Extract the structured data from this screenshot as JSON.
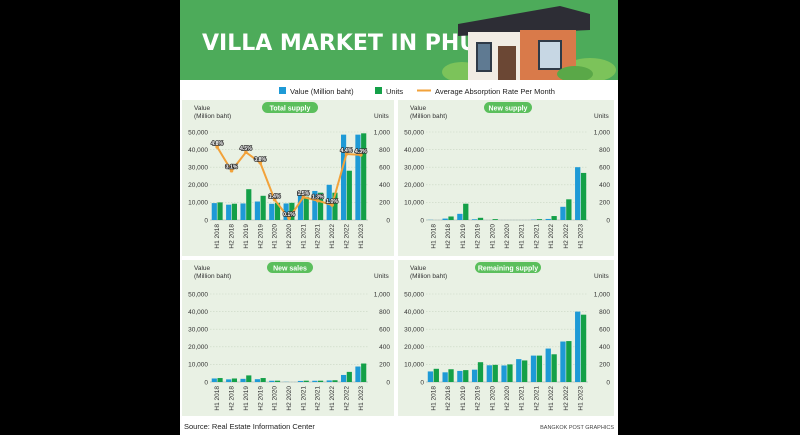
{
  "header": {
    "title": "VILLA MARKET IN PHUKET"
  },
  "legend": {
    "value_label": "Value (Million baht)",
    "units_label": "Units",
    "rate_label": "Average Absorption Rate Per Month"
  },
  "colors": {
    "value_bar": "#1e9ad6",
    "units_bar": "#14a048",
    "rate_line": "#f2a23a",
    "header_green": "#4dab5a",
    "panel_bg": "#e9f1e4"
  },
  "axis_text": {
    "left_title_line1": "Value",
    "left_title_line2": "(Million baht)",
    "right_title": "Units"
  },
  "footer": {
    "source": "Source: Real Estate Information Center",
    "credit": "BANGKOK POST GRAPHICS"
  },
  "chart_data": [
    {
      "type": "bar",
      "title": "Total supply",
      "categories": [
        "H1 2018",
        "H2 2018",
        "H1 2019",
        "H2 2019",
        "H1 2020",
        "H2 2020",
        "H1 2021",
        "H2 2021",
        "H1 2022",
        "H2 2022",
        "H1 2023"
      ],
      "series": [
        {
          "name": "Value (Million baht)",
          "axis": "left",
          "values": [
            9600,
            8700,
            9400,
            10500,
            9200,
            9400,
            15000,
            16500,
            20000,
            48500,
            48500
          ]
        },
        {
          "name": "Units",
          "axis": "right",
          "values": [
            200,
            185,
            350,
            275,
            195,
            195,
            265,
            310,
            310,
            560,
            985
          ]
        },
        {
          "name": "Average Absorption Rate Per Month",
          "type": "line",
          "axis": "right",
          "values": [
            830,
            560,
            770,
            650,
            230,
            20,
            260,
            220,
            170,
            750,
            740
          ]
        }
      ],
      "rate_labels": [
        "4.8%",
        "3.1%",
        "4.5%",
        "3.8%",
        "1.4%",
        "0.1%",
        "1.5%",
        "1.3%",
        "1.0%",
        "4.4%",
        "4.3%"
      ],
      "ylim_left": [
        0,
        50000
      ],
      "ylim_right": [
        0,
        1000
      ],
      "yticks_left": [
        "0",
        "10,000",
        "20,000",
        "30,000",
        "40,000",
        "50,000"
      ],
      "yticks_right": [
        "0",
        "200",
        "400",
        "600",
        "800",
        "1,000"
      ]
    },
    {
      "type": "bar",
      "title": "New supply",
      "categories": [
        "H1 2018",
        "H2 2018",
        "H1 2019",
        "H2 2019",
        "H1 2020",
        "H2 2020",
        "H1 2021",
        "H2 2021",
        "H1 2022",
        "H2 2022",
        "H1 2023"
      ],
      "series": [
        {
          "name": "Value (Million baht)",
          "axis": "left",
          "values": [
            100,
            800,
            3500,
            400,
            0,
            0,
            0,
            200,
            600,
            7500,
            30000
          ]
        },
        {
          "name": "Units",
          "axis": "right",
          "values": [
            0,
            40,
            185,
            25,
            10,
            0,
            0,
            10,
            45,
            235,
            535
          ]
        }
      ],
      "ylim_left": [
        0,
        50000
      ],
      "ylim_right": [
        0,
        1000
      ],
      "yticks_left": [
        "0",
        "10,000",
        "20,000",
        "30,000",
        "40,000",
        "50,000"
      ],
      "yticks_right": [
        "0",
        "200",
        "400",
        "600",
        "800",
        "1,000"
      ]
    },
    {
      "type": "bar",
      "title": "New sales",
      "categories": [
        "H1 2018",
        "H2 2018",
        "H1 2019",
        "H2 2019",
        "H1 2020",
        "H2 2020",
        "H1 2021",
        "H2 2021",
        "H1 2022",
        "H2 2022",
        "H1 2023"
      ],
      "series": [
        {
          "name": "Value (Million baht)",
          "axis": "left",
          "values": [
            2000,
            1500,
            1800,
            1600,
            700,
            100,
            600,
            700,
            900,
            4000,
            8800
          ]
        },
        {
          "name": "Units",
          "axis": "right",
          "values": [
            45,
            40,
            75,
            45,
            15,
            0,
            15,
            15,
            20,
            115,
            210
          ]
        }
      ],
      "ylim_left": [
        0,
        50000
      ],
      "ylim_right": [
        0,
        1000
      ],
      "yticks_left": [
        "0",
        "10,000",
        "20,000",
        "30,000",
        "40,000",
        "50,000"
      ],
      "yticks_right": [
        "0",
        "200",
        "400",
        "600",
        "800",
        "1,000"
      ]
    },
    {
      "type": "bar",
      "title": "Remaining supply",
      "categories": [
        "H1 2018",
        "H2 2018",
        "H1 2019",
        "H2 2019",
        "H1 2020",
        "H2 2020",
        "H1 2021",
        "H2 2021",
        "H1 2022",
        "H2 2022",
        "H1 2023"
      ],
      "series": [
        {
          "name": "Value (Million baht)",
          "axis": "left",
          "values": [
            6000,
            5500,
            6300,
            7000,
            9500,
            9400,
            13000,
            15000,
            19000,
            23000,
            40000
          ]
        },
        {
          "name": "Units",
          "axis": "right",
          "values": [
            150,
            145,
            135,
            225,
            195,
            200,
            245,
            300,
            315,
            465,
            765
          ]
        }
      ],
      "ylim_left": [
        0,
        50000
      ],
      "ylim_right": [
        0,
        1000
      ],
      "yticks_left": [
        "0",
        "10,000",
        "20,000",
        "30,000",
        "40,000",
        "50,000"
      ],
      "yticks_right": [
        "0",
        "200",
        "400",
        "600",
        "800",
        "1,000"
      ]
    }
  ]
}
